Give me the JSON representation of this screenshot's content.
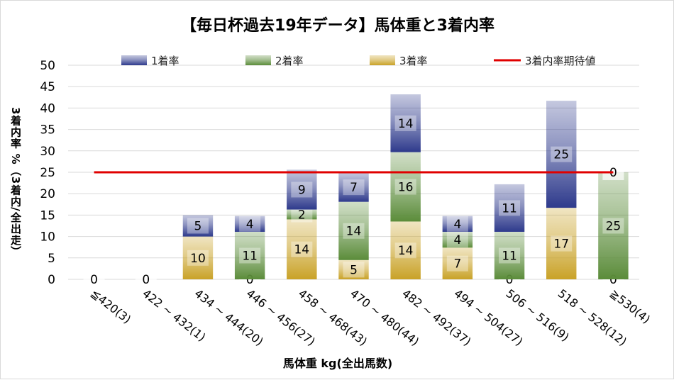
{
  "chart_data": {
    "type": "bar",
    "stacked": true,
    "title": "【毎日杯過去19年データ】馬体重と3着内率",
    "xlabel": "馬体重 kg(全出馬数)",
    "ylabel": "3着内率 %（3着内/全出走）",
    "ylim": [
      0,
      50
    ],
    "yticks": [
      0,
      5,
      10,
      15,
      20,
      25,
      30,
      35,
      40,
      45,
      50
    ],
    "grid": true,
    "legend_position": "top",
    "categories": [
      "≦420(3)",
      "422 ~ 432(1)",
      "434 ~ 444(20)",
      "446 ~ 456(27)",
      "458 ~ 468(43)",
      "470 ~ 480(44)",
      "482 ~ 492(37)",
      "494 ~ 504(27)",
      "506 ~ 516(9)",
      "518 ~ 528(12)",
      "≧530(4)"
    ],
    "series": [
      {
        "name": "3着率",
        "color": "#c9a227",
        "values": [
          0,
          0,
          10,
          0,
          14,
          4.5,
          13.5,
          7.4,
          0,
          16.7,
          0
        ],
        "labels": [
          "0",
          "0",
          "10",
          "0",
          "14",
          "5",
          "14",
          "7",
          "0",
          "17",
          "0"
        ]
      },
      {
        "name": "2着率",
        "color": "#5b8c3a",
        "values": [
          0,
          0,
          0,
          11.1,
          2.3,
          13.6,
          16.2,
          3.7,
          11.1,
          0,
          25
        ],
        "labels": [
          "",
          "",
          "",
          "11",
          "2",
          "14",
          "16",
          "4",
          "11",
          "",
          "25"
        ]
      },
      {
        "name": "1着率",
        "color": "#2e3a8c",
        "values": [
          0,
          0,
          5,
          3.7,
          9.3,
          6.8,
          13.5,
          3.7,
          11.1,
          25,
          0
        ],
        "labels": [
          "",
          "",
          "5",
          "4",
          "9",
          "7",
          "14",
          "4",
          "11",
          "25",
          "0"
        ]
      }
    ],
    "reference_line": {
      "name": "3着内率期待値",
      "value": 25,
      "color": "#e00000"
    }
  }
}
